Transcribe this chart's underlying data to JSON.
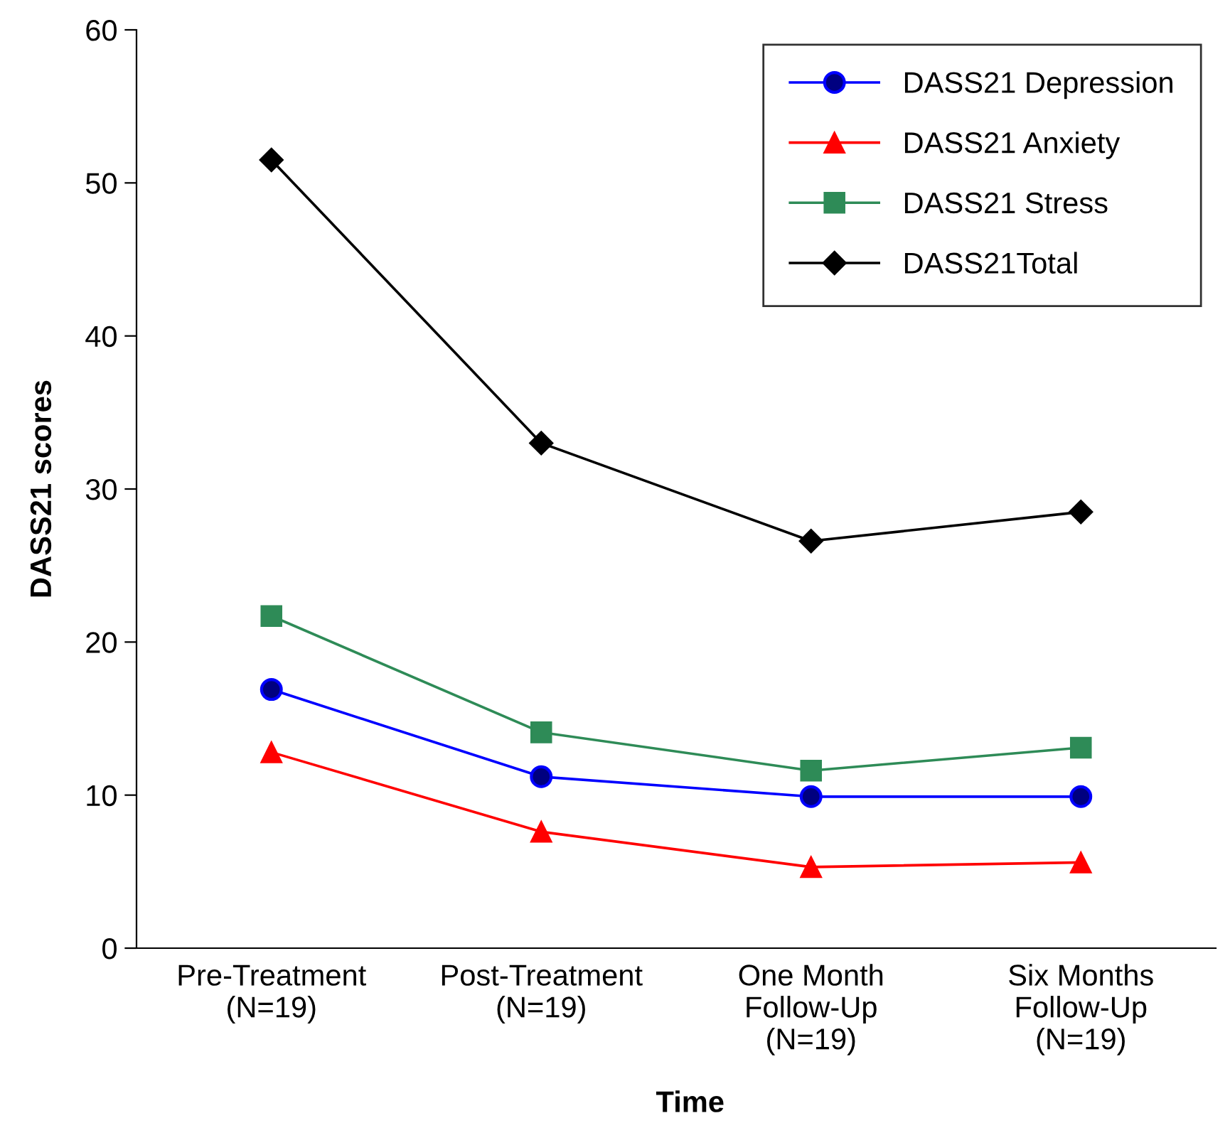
{
  "chart_data": {
    "type": "line",
    "xlabel": "Time",
    "ylabel": "DASS21 scores",
    "categories": [
      "Pre-Treatment\n(N=19)",
      "Post-Treatment\n(N=19)",
      "One Month\nFollow-Up\n(N=19)",
      "Six Months\nFollow-Up\n(N=19)"
    ],
    "series": [
      {
        "name": "DASS21 Depression",
        "color": "#0000ff",
        "marker": "circle",
        "values": [
          16.9,
          11.2,
          9.9,
          9.9
        ]
      },
      {
        "name": "DASS21 Anxiety",
        "color": "#ff0000",
        "marker": "triangle",
        "values": [
          12.8,
          7.6,
          5.3,
          5.6
        ]
      },
      {
        "name": "DASS21 Stress",
        "color": "#2e8b57",
        "marker": "square",
        "values": [
          21.7,
          14.1,
          11.6,
          13.1
        ]
      },
      {
        "name": "DASS21Total",
        "color": "#000000",
        "marker": "diamond",
        "values": [
          51.5,
          33.0,
          26.6,
          28.5
        ]
      }
    ],
    "ylim": [
      0,
      60
    ],
    "yticks": [
      0,
      10,
      20,
      30,
      40,
      50,
      60
    ],
    "grid": false,
    "legend": "top right",
    "line_style": "solid"
  }
}
